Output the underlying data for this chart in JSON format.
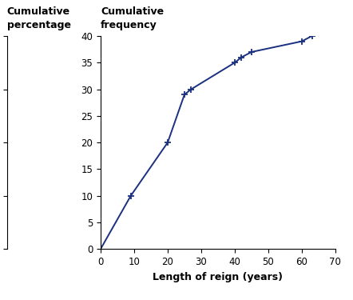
{
  "x": [
    0,
    9,
    20,
    25,
    27,
    40,
    42,
    45,
    60,
    63
  ],
  "y_freq": [
    0,
    10,
    20,
    29,
    30,
    35,
    36,
    37,
    39,
    40
  ],
  "x_label": "Length of reign (years)",
  "label_left": "Cumulative\npercentage",
  "label_right": "Cumulative\nfrequency",
  "xlim": [
    0,
    70
  ],
  "ylim_freq": [
    0,
    40
  ],
  "ylim_pct": [
    0,
    100
  ],
  "x_ticks": [
    0,
    10,
    20,
    30,
    40,
    50,
    60,
    70
  ],
  "y_freq_ticks": [
    0,
    5,
    10,
    15,
    20,
    25,
    30,
    35,
    40
  ],
  "y_pct_ticks": [
    0,
    25,
    50,
    75,
    100
  ],
  "line_color": "#1a3080",
  "marker": "+",
  "marker_size": 6,
  "marker_color": "#1a3080",
  "line_width": 1.4,
  "label_fontsize": 9,
  "tick_fontsize": 8.5,
  "bg_color": "#ffffff",
  "total_freq": 40
}
